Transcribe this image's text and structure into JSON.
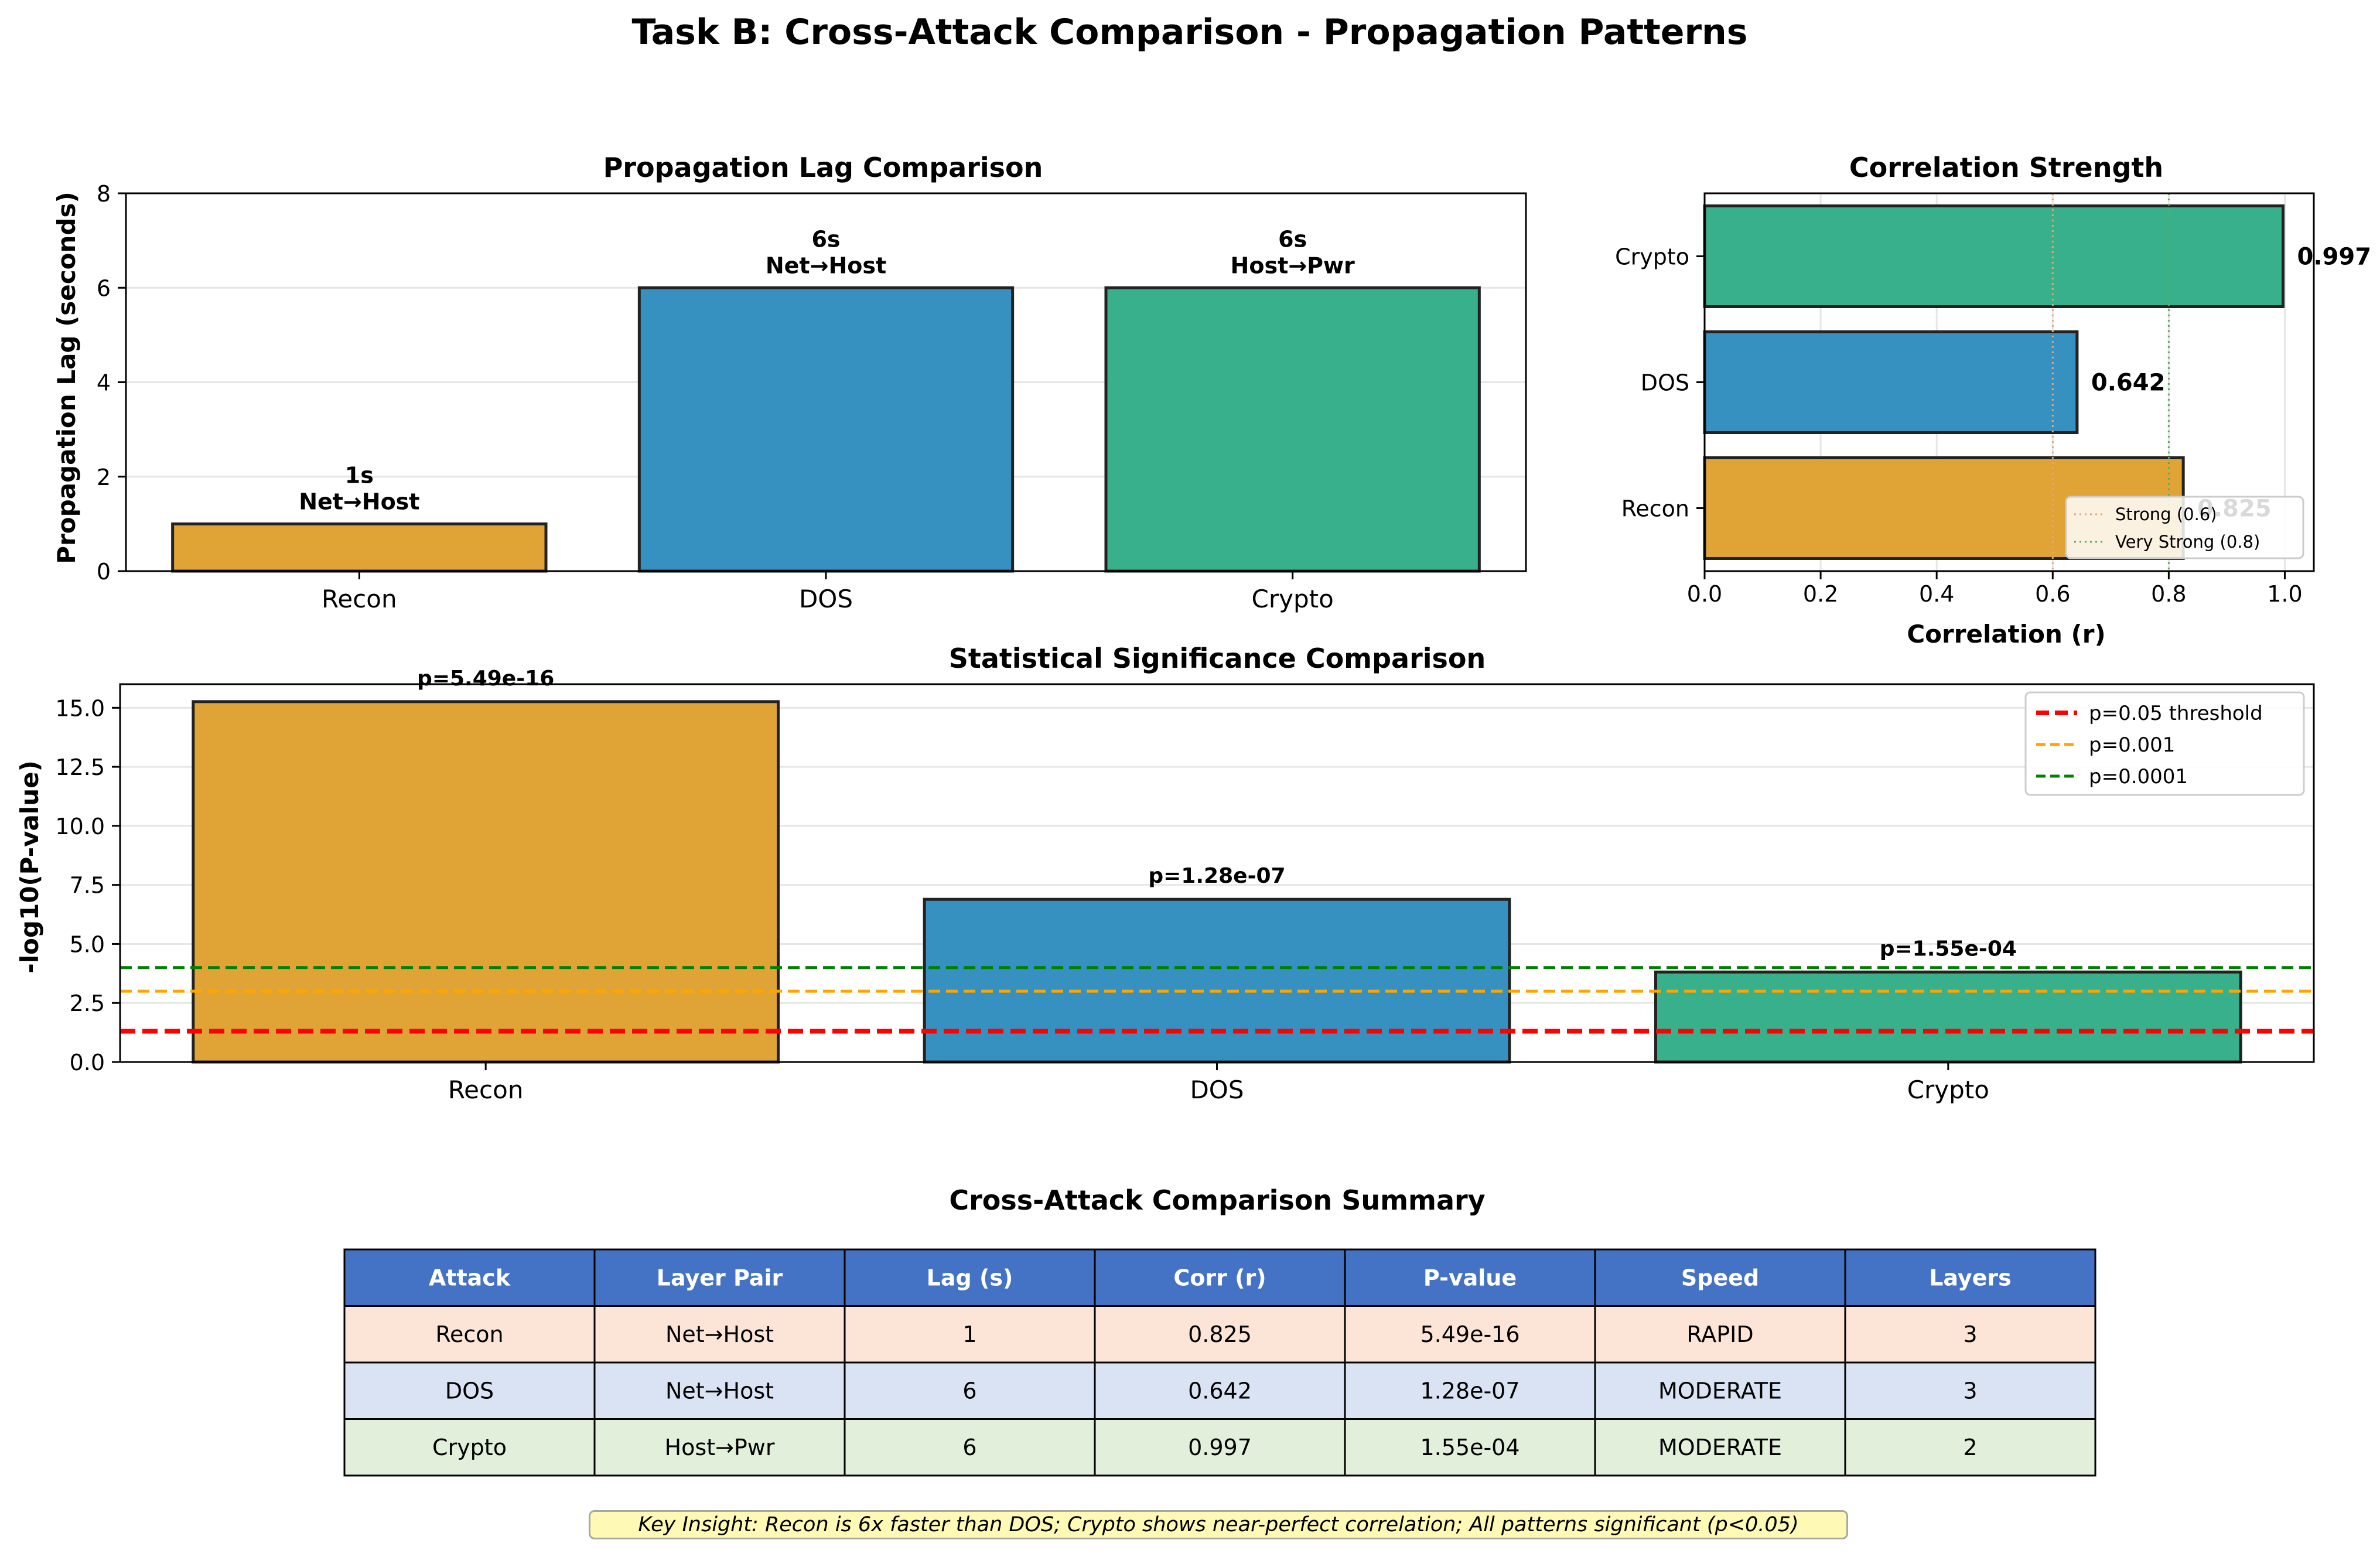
{
  "title": "Task B: Cross-Attack Comparison - Propagation Patterns",
  "colors": {
    "Recon": "#e0a335",
    "DOS": "#3690c0",
    "Crypto": "#38b08c",
    "edge": "#222222"
  },
  "chart_data": [
    {
      "type": "bar",
      "title": "Propagation Lag Comparison",
      "xlabel": "",
      "ylabel": "Propagation Lag (seconds)",
      "categories": [
        "Recon",
        "DOS",
        "Crypto"
      ],
      "values": [
        1,
        6,
        6
      ],
      "annotations": [
        {
          "value_label": "1s",
          "pair": "Net→Host"
        },
        {
          "value_label": "6s",
          "pair": "Net→Host"
        },
        {
          "value_label": "6s",
          "pair": "Host→Pwr"
        }
      ],
      "ylim": [
        0,
        8
      ],
      "yticks": [
        0,
        2,
        4,
        6,
        8
      ],
      "grid": "y"
    },
    {
      "type": "bar",
      "orientation": "horizontal",
      "title": "Correlation Strength",
      "xlabel": "Correlation (r)",
      "categories": [
        "Recon",
        "DOS",
        "Crypto"
      ],
      "values": [
        0.825,
        0.642,
        0.997
      ],
      "value_labels": [
        "0.825",
        "0.642",
        "0.997"
      ],
      "xlim": [
        0,
        1.05
      ],
      "xticks": [
        "0.0",
        "0.2",
        "0.4",
        "0.6",
        "0.8",
        "1.0"
      ],
      "reference_lines": [
        {
          "label": "Strong (0.6)",
          "x": 0.6,
          "color": "#e0a880"
        },
        {
          "label": "Very Strong (0.8)",
          "x": 0.8,
          "color": "#5fa85f"
        }
      ],
      "legend": "lower-right",
      "grid": "x"
    },
    {
      "type": "bar",
      "title": "Statistical Significance Comparison",
      "xlabel": "",
      "ylabel": "-log10(P-value)",
      "categories": [
        "Recon",
        "DOS",
        "Crypto"
      ],
      "values": [
        15.26,
        6.89,
        3.81
      ],
      "value_labels": [
        "p=5.49e-16",
        "p=1.28e-07",
        "p=1.55e-04"
      ],
      "ylim": [
        0,
        16
      ],
      "yticks": [
        "0.0",
        "2.5",
        "5.0",
        "7.5",
        "10.0",
        "12.5",
        "15.0"
      ],
      "thresholds": [
        {
          "label": "p=0.05 threshold",
          "y": 1.301,
          "color": "#ff0000",
          "style": "bold-dashed"
        },
        {
          "label": "p=0.001",
          "y": 3,
          "color": "#ffa500",
          "style": "dashed"
        },
        {
          "label": "p=0.0001",
          "y": 4,
          "color": "#008000",
          "style": "dashed"
        }
      ],
      "legend": "top-right",
      "grid": "y"
    },
    {
      "type": "table",
      "title": "Cross-Attack Comparison Summary",
      "columns": [
        "Attack",
        "Layer Pair",
        "Lag (s)",
        "Corr (r)",
        "P-value",
        "Speed",
        "Layers"
      ],
      "rows": [
        [
          "Recon",
          "Net→Host",
          "1",
          "0.825",
          "5.49e-16",
          "RAPID",
          "3"
        ],
        [
          "DOS",
          "Net→Host",
          "6",
          "0.642",
          "1.28e-07",
          "MODERATE",
          "3"
        ],
        [
          "Crypto",
          "Host→Pwr",
          "6",
          "0.997",
          "1.55e-04",
          "MODERATE",
          "2"
        ]
      ],
      "header_color": "#4472c4",
      "row_colors": [
        "#fce4d6",
        "#dae3f3",
        "#e2efda"
      ]
    }
  ],
  "insight": "Key Insight: Recon is 6x faster than DOS; Crypto shows near-perfect correlation; All patterns significant (p<0.05)"
}
